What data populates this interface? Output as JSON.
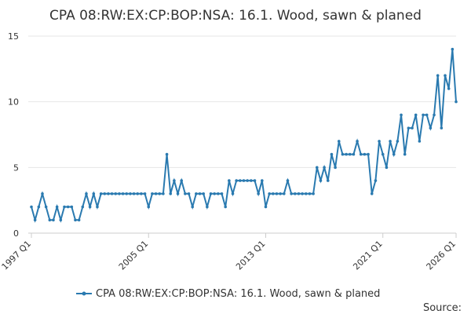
{
  "chart_data": {
    "type": "line",
    "title": "CPA 08:RW:EX:CP:BOP:NSA: 16.1. Wood, sawn & planed",
    "source": "Source:",
    "categories": [
      "1997 Q1",
      null,
      null,
      null,
      null,
      null,
      null,
      null,
      null,
      null,
      null,
      null,
      null,
      null,
      null,
      null,
      null,
      null,
      null,
      null,
      null,
      null,
      null,
      null,
      null,
      null,
      null,
      null,
      null,
      null,
      null,
      null,
      "2005 Q1",
      null,
      null,
      null,
      null,
      null,
      null,
      null,
      null,
      null,
      null,
      null,
      null,
      null,
      null,
      null,
      null,
      null,
      null,
      null,
      null,
      null,
      null,
      null,
      null,
      null,
      null,
      null,
      null,
      null,
      null,
      null,
      "2013 Q1",
      null,
      null,
      null,
      null,
      null,
      null,
      null,
      null,
      null,
      null,
      null,
      null,
      null,
      null,
      null,
      null,
      null,
      null,
      null,
      null,
      null,
      null,
      null,
      null,
      null,
      null,
      null,
      null,
      null,
      null,
      null,
      "2021 Q1",
      null,
      null,
      null,
      null,
      null,
      null,
      null,
      null,
      null,
      null,
      null,
      null,
      null,
      null,
      null,
      null,
      null,
      null,
      null,
      "2026 Q1"
    ],
    "series": [
      {
        "name": "CPA 08:RW:EX:CP:BOP:NSA: 16.1. Wood, sawn & planed",
        "color": "#2a7ab0",
        "values": [
          2,
          1,
          2,
          3,
          2,
          1,
          1,
          2,
          1,
          2,
          2,
          2,
          1,
          1,
          2,
          3,
          2,
          3,
          2,
          3,
          3,
          3,
          3,
          3,
          3,
          3,
          3,
          3,
          3,
          3,
          3,
          3,
          2,
          3,
          3,
          3,
          3,
          6,
          3,
          4,
          3,
          4,
          3,
          3,
          2,
          3,
          3,
          3,
          2,
          3,
          3,
          3,
          3,
          2,
          4,
          3,
          4,
          4,
          4,
          4,
          4,
          4,
          3,
          4,
          2,
          3,
          3,
          3,
          3,
          3,
          4,
          3,
          3,
          3,
          3,
          3,
          3,
          3,
          5,
          4,
          5,
          4,
          6,
          5,
          7,
          6,
          6,
          6,
          6,
          7,
          6,
          6,
          6,
          3,
          4,
          7,
          6,
          5,
          7,
          6,
          7,
          9,
          6,
          8,
          8,
          9,
          7,
          9,
          9,
          8,
          9,
          12,
          8,
          12,
          11,
          14,
          10
        ]
      }
    ],
    "ylim": [
      0,
      15
    ],
    "yticks": [
      0,
      5,
      10,
      15
    ],
    "grid": true
  }
}
